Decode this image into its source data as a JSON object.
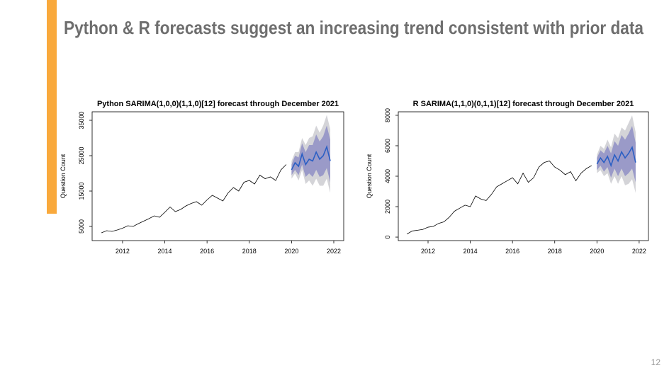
{
  "title": "Python & R forecasts suggest an increasing trend consistent with prior data",
  "page_number": "12",
  "chart_data": [
    {
      "type": "line",
      "title": "Python SARIMA(1,0,0)(1,1,0)[12] forecast through December 2021",
      "y_label": "Question Count",
      "xlim": [
        2010.56,
        2022.47
      ],
      "ylim": [
        1000,
        37400
      ],
      "xticks": [
        2012,
        2014,
        2016,
        2018,
        2020,
        2022
      ],
      "yticks": [
        5000,
        15000,
        25000,
        35000
      ],
      "history": {
        "color": "#000000",
        "x": [
          2011,
          2011.25,
          2011.5,
          2011.75,
          2012,
          2012.25,
          2012.5,
          2012.75,
          2013,
          2013.25,
          2013.5,
          2013.75,
          2014,
          2014.25,
          2014.5,
          2014.75,
          2015,
          2015.25,
          2015.5,
          2015.75,
          2016,
          2016.25,
          2016.5,
          2016.75,
          2017,
          2017.25,
          2017.5,
          2017.75,
          2018,
          2018.25,
          2018.5,
          2018.75,
          2019,
          2019.25,
          2019.5,
          2019.75
        ],
        "values": [
          3200,
          3800,
          3600,
          4000,
          4500,
          5200,
          5000,
          5800,
          6500,
          7200,
          8000,
          7600,
          9000,
          10500,
          9200,
          9800,
          10800,
          11500,
          12000,
          11000,
          12500,
          13800,
          13000,
          12200,
          14500,
          16000,
          15000,
          17500,
          18000,
          17000,
          19500,
          18500,
          19000,
          18000,
          21000,
          22500
        ]
      },
      "forecast": {
        "color": "#2b5fc4",
        "band80_color": "#9a9ac8",
        "band95_color": "#d4d4d8",
        "x": [
          2020,
          2020.167,
          2020.333,
          2020.5,
          2020.667,
          2020.833,
          2021,
          2021.167,
          2021.333,
          2021.5,
          2021.667,
          2021.833
        ],
        "values": [
          21000,
          23000,
          22000,
          25500,
          22500,
          24000,
          23500,
          26000,
          24000,
          25000,
          27500,
          23500
        ],
        "lo80": [
          19500,
          21000,
          19500,
          22500,
          19000,
          20000,
          19000,
          21000,
          19000,
          19500,
          21500,
          17500
        ],
        "hi80": [
          22500,
          25000,
          24500,
          28500,
          26000,
          28000,
          28000,
          31000,
          29000,
          30500,
          33500,
          29500
        ],
        "lo95": [
          18500,
          20000,
          18000,
          21000,
          17000,
          18000,
          16500,
          18500,
          16500,
          16500,
          18500,
          14500
        ],
        "hi95": [
          23500,
          26000,
          26000,
          30000,
          28000,
          30000,
          30500,
          33500,
          31500,
          33500,
          36500,
          32500
        ]
      }
    },
    {
      "type": "line",
      "title": "R SARIMA(1,1,0)(0,1,1)[12] forecast through December 2021",
      "y_label": "Question Count",
      "xlim": [
        2010.59,
        2022.44
      ],
      "ylim": [
        -230,
        8230
      ],
      "xticks": [
        2012,
        2014,
        2016,
        2018,
        2020,
        2022
      ],
      "yticks": [
        0,
        2000,
        4000,
        6000,
        8000
      ],
      "history": {
        "color": "#000000",
        "x": [
          2011,
          2011.25,
          2011.5,
          2011.75,
          2012,
          2012.25,
          2012.5,
          2012.75,
          2013,
          2013.25,
          2013.5,
          2013.75,
          2014,
          2014.25,
          2014.5,
          2014.75,
          2015,
          2015.25,
          2015.5,
          2015.75,
          2016,
          2016.25,
          2016.5,
          2016.75,
          2017,
          2017.25,
          2017.5,
          2017.75,
          2018,
          2018.25,
          2018.5,
          2018.75,
          2019,
          2019.25,
          2019.5,
          2019.75
        ],
        "values": [
          200,
          400,
          450,
          500,
          650,
          700,
          900,
          1000,
          1300,
          1700,
          1900,
          2100,
          2000,
          2700,
          2500,
          2400,
          2800,
          3300,
          3500,
          3700,
          3900,
          3500,
          4200,
          3600,
          3900,
          4600,
          4900,
          5000,
          4600,
          4400,
          4100,
          4300,
          3700,
          4200,
          4500,
          4700
        ]
      },
      "forecast": {
        "color": "#2b5fc4",
        "band80_color": "#9a9ac8",
        "band95_color": "#d4d4d8",
        "x": [
          2020,
          2020.167,
          2020.333,
          2020.5,
          2020.667,
          2020.833,
          2021,
          2021.167,
          2021.333,
          2021.5,
          2021.667,
          2021.833
        ],
        "values": [
          4800,
          5200,
          4900,
          5300,
          4700,
          5400,
          5000,
          5600,
          5200,
          5500,
          5900,
          4900
        ],
        "lo80": [
          4400,
          4700,
          4300,
          4600,
          3900,
          4500,
          4000,
          4500,
          4000,
          4200,
          4500,
          3600
        ],
        "hi80": [
          5200,
          5700,
          5500,
          6000,
          5500,
          6300,
          6000,
          6700,
          6400,
          6800,
          7300,
          6200
        ],
        "lo95": [
          4200,
          4400,
          4000,
          4200,
          3500,
          4000,
          3500,
          4000,
          3400,
          3500,
          3800,
          2900
        ],
        "hi95": [
          5400,
          6000,
          5800,
          6400,
          5900,
          6800,
          6500,
          7200,
          7000,
          7500,
          8000,
          6900
        ]
      }
    }
  ]
}
